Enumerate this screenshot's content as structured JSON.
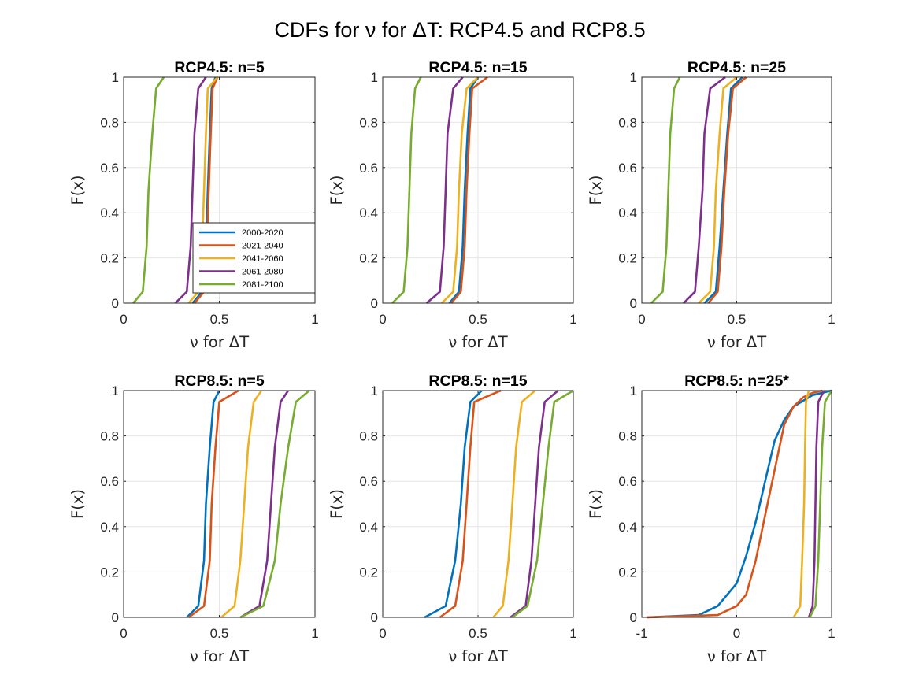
{
  "figure": {
    "title": "CDFs for ν for ΔT: RCP4.5 and RCP8.5",
    "legend_placement": "inside first panel, bottom-right"
  },
  "series_colors": {
    "2000-2020": "#0072BD",
    "2021-2040": "#D95319",
    "2041-2060": "#EDB120",
    "2061-2080": "#7E2F8E",
    "2081-2100": "#77AC30"
  },
  "chart_data": [
    {
      "type": "line",
      "title": "RCP4.5: n=5",
      "xlabel": "ν for ΔT",
      "ylabel": "F(x)",
      "xlim": [
        0,
        1
      ],
      "ylim": [
        0,
        1
      ],
      "xticks": [
        0,
        0.5,
        1
      ],
      "xtick_labels": [
        "0",
        "0.5",
        "1"
      ],
      "yticks": [
        0,
        0.2,
        0.4,
        0.6,
        0.8,
        1
      ],
      "ytick_labels": [
        "0",
        "0.2",
        "0.4",
        "0.6",
        "0.8",
        "1"
      ],
      "grid": true,
      "legend": true,
      "series": [
        {
          "name": "2000-2020",
          "x": [
            0.36,
            0.41,
            0.43,
            0.44,
            0.45,
            0.46,
            0.48
          ],
          "y": [
            0,
            0.05,
            0.25,
            0.5,
            0.75,
            0.95,
            1
          ]
        },
        {
          "name": "2021-2040",
          "x": [
            0.37,
            0.42,
            0.435,
            0.445,
            0.455,
            0.465,
            0.49
          ],
          "y": [
            0,
            0.05,
            0.25,
            0.5,
            0.75,
            0.95,
            1
          ]
        },
        {
          "name": "2041-2060",
          "x": [
            0.34,
            0.39,
            0.41,
            0.42,
            0.43,
            0.44,
            0.49
          ],
          "y": [
            0,
            0.05,
            0.25,
            0.5,
            0.75,
            0.95,
            1
          ]
        },
        {
          "name": "2061-2080",
          "x": [
            0.27,
            0.33,
            0.35,
            0.36,
            0.37,
            0.39,
            0.43
          ],
          "y": [
            0,
            0.05,
            0.25,
            0.5,
            0.75,
            0.95,
            1
          ]
        },
        {
          "name": "2081-2100",
          "x": [
            0.05,
            0.1,
            0.12,
            0.13,
            0.15,
            0.17,
            0.21
          ],
          "y": [
            0,
            0.05,
            0.25,
            0.5,
            0.75,
            0.95,
            1
          ]
        }
      ]
    },
    {
      "type": "line",
      "title": "RCP4.5: n=15",
      "xlabel": "ν for ΔT",
      "ylabel": "F(x)",
      "xlim": [
        0,
        1
      ],
      "ylim": [
        0,
        1
      ],
      "xticks": [
        0,
        0.5,
        1
      ],
      "xtick_labels": [
        "0",
        "0.5",
        "1"
      ],
      "yticks": [
        0,
        0.2,
        0.4,
        0.6,
        0.8,
        1
      ],
      "ytick_labels": [
        "0",
        "0.2",
        "0.4",
        "0.6",
        "0.8",
        "1"
      ],
      "grid": true,
      "legend": false,
      "series": [
        {
          "name": "2000-2020",
          "x": [
            0.35,
            0.4,
            0.42,
            0.43,
            0.445,
            0.46,
            0.5
          ],
          "y": [
            0,
            0.05,
            0.25,
            0.5,
            0.75,
            0.95,
            1
          ]
        },
        {
          "name": "2021-2040",
          "x": [
            0.36,
            0.41,
            0.43,
            0.44,
            0.455,
            0.47,
            0.55
          ],
          "y": [
            0,
            0.05,
            0.25,
            0.5,
            0.75,
            0.95,
            1
          ]
        },
        {
          "name": "2041-2060",
          "x": [
            0.31,
            0.37,
            0.39,
            0.4,
            0.415,
            0.44,
            0.5
          ],
          "y": [
            0,
            0.05,
            0.25,
            0.5,
            0.75,
            0.95,
            1
          ]
        },
        {
          "name": "2061-2080",
          "x": [
            0.23,
            0.3,
            0.32,
            0.33,
            0.34,
            0.37,
            0.42
          ],
          "y": [
            0,
            0.05,
            0.25,
            0.5,
            0.75,
            0.95,
            1
          ]
        },
        {
          "name": "2081-2100",
          "x": [
            0.05,
            0.11,
            0.13,
            0.14,
            0.15,
            0.17,
            0.2
          ],
          "y": [
            0,
            0.05,
            0.25,
            0.5,
            0.75,
            0.95,
            1
          ]
        }
      ]
    },
    {
      "type": "line",
      "title": "RCP4.5: n=25",
      "xlabel": "ν for ΔT",
      "ylabel": "F(x)",
      "xlim": [
        0,
        1
      ],
      "ylim": [
        0,
        1
      ],
      "xticks": [
        0,
        0.5,
        1
      ],
      "xtick_labels": [
        "0",
        "0.5",
        "1"
      ],
      "yticks": [
        0,
        0.2,
        0.4,
        0.6,
        0.8,
        1
      ],
      "ytick_labels": [
        "0",
        "0.2",
        "0.4",
        "0.6",
        "0.8",
        "1"
      ],
      "grid": true,
      "legend": false,
      "series": [
        {
          "name": "2000-2020",
          "x": [
            0.33,
            0.39,
            0.41,
            0.43,
            0.45,
            0.47,
            0.53
          ],
          "y": [
            0,
            0.05,
            0.25,
            0.5,
            0.75,
            0.95,
            1
          ]
        },
        {
          "name": "2021-2040",
          "x": [
            0.35,
            0.4,
            0.42,
            0.435,
            0.455,
            0.48,
            0.55
          ],
          "y": [
            0,
            0.05,
            0.25,
            0.5,
            0.75,
            0.95,
            1
          ]
        },
        {
          "name": "2041-2060",
          "x": [
            0.3,
            0.36,
            0.38,
            0.39,
            0.41,
            0.43,
            0.5
          ],
          "y": [
            0,
            0.05,
            0.25,
            0.5,
            0.75,
            0.95,
            1
          ]
        },
        {
          "name": "2061-2080",
          "x": [
            0.22,
            0.28,
            0.3,
            0.32,
            0.33,
            0.36,
            0.44
          ],
          "y": [
            0,
            0.05,
            0.25,
            0.5,
            0.75,
            0.95,
            1
          ]
        },
        {
          "name": "2081-2100",
          "x": [
            0.05,
            0.11,
            0.13,
            0.14,
            0.15,
            0.17,
            0.2
          ],
          "y": [
            0,
            0.05,
            0.25,
            0.5,
            0.75,
            0.95,
            1
          ]
        }
      ]
    },
    {
      "type": "line",
      "title": "RCP8.5: n=5",
      "xlabel": "ν for ΔT",
      "ylabel": "F(x)",
      "xlim": [
        0,
        1
      ],
      "ylim": [
        0,
        1
      ],
      "xticks": [
        0,
        0.5,
        1
      ],
      "xtick_labels": [
        "0",
        "0.5",
        "1"
      ],
      "yticks": [
        0,
        0.2,
        0.4,
        0.6,
        0.8,
        1
      ],
      "ytick_labels": [
        "0",
        "0.2",
        "0.4",
        "0.6",
        "0.8",
        "1"
      ],
      "grid": true,
      "legend": false,
      "series": [
        {
          "name": "2000-2020",
          "x": [
            0.33,
            0.39,
            0.42,
            0.43,
            0.45,
            0.47,
            0.5
          ],
          "y": [
            0,
            0.05,
            0.25,
            0.5,
            0.75,
            0.95,
            1
          ]
        },
        {
          "name": "2021-2040",
          "x": [
            0.34,
            0.42,
            0.45,
            0.46,
            0.48,
            0.5,
            0.6
          ],
          "y": [
            0,
            0.05,
            0.25,
            0.5,
            0.75,
            0.95,
            1
          ]
        },
        {
          "name": "2041-2060",
          "x": [
            0.51,
            0.58,
            0.61,
            0.63,
            0.65,
            0.68,
            0.72
          ],
          "y": [
            0,
            0.05,
            0.25,
            0.5,
            0.75,
            0.95,
            1
          ]
        },
        {
          "name": "2061-2080",
          "x": [
            0.61,
            0.71,
            0.75,
            0.77,
            0.79,
            0.82,
            0.86
          ],
          "y": [
            0,
            0.05,
            0.25,
            0.5,
            0.75,
            0.95,
            1
          ]
        },
        {
          "name": "2081-2100",
          "x": [
            0.61,
            0.73,
            0.79,
            0.82,
            0.86,
            0.9,
            0.97
          ],
          "y": [
            0,
            0.05,
            0.25,
            0.5,
            0.75,
            0.95,
            1
          ]
        }
      ]
    },
    {
      "type": "line",
      "title": "RCP8.5: n=15",
      "xlabel": "ν for ΔT",
      "ylabel": "F(x)",
      "xlim": [
        0,
        1
      ],
      "ylim": [
        0,
        1
      ],
      "xticks": [
        0,
        0.5,
        1
      ],
      "xtick_labels": [
        "0",
        "0.5",
        "1"
      ],
      "yticks": [
        0,
        0.2,
        0.4,
        0.6,
        0.8,
        1
      ],
      "ytick_labels": [
        "0",
        "0.2",
        "0.4",
        "0.6",
        "0.8",
        "1"
      ],
      "grid": true,
      "legend": false,
      "series": [
        {
          "name": "2000-2020",
          "x": [
            0.22,
            0.33,
            0.38,
            0.41,
            0.43,
            0.46,
            0.52
          ],
          "y": [
            0,
            0.05,
            0.25,
            0.5,
            0.75,
            0.95,
            1
          ]
        },
        {
          "name": "2021-2040",
          "x": [
            0.3,
            0.38,
            0.42,
            0.44,
            0.46,
            0.48,
            0.62
          ],
          "y": [
            0,
            0.05,
            0.25,
            0.5,
            0.75,
            0.95,
            1
          ]
        },
        {
          "name": "2041-2060",
          "x": [
            0.58,
            0.63,
            0.66,
            0.68,
            0.7,
            0.73,
            0.8
          ],
          "y": [
            0,
            0.05,
            0.25,
            0.5,
            0.75,
            0.95,
            1
          ]
        },
        {
          "name": "2061-2080",
          "x": [
            0.67,
            0.75,
            0.78,
            0.8,
            0.82,
            0.85,
            0.92
          ],
          "y": [
            0,
            0.05,
            0.25,
            0.5,
            0.75,
            0.95,
            1
          ]
        },
        {
          "name": "2081-2100",
          "x": [
            0.68,
            0.76,
            0.81,
            0.84,
            0.87,
            0.9,
            1.0
          ],
          "y": [
            0,
            0.05,
            0.25,
            0.5,
            0.75,
            0.95,
            1
          ]
        }
      ]
    },
    {
      "type": "line",
      "title": "RCP8.5: n=25*",
      "xlabel": "ν for ΔT",
      "ylabel": "F(x)",
      "xlim": [
        -1,
        1
      ],
      "ylim": [
        0,
        1
      ],
      "xticks": [
        -1,
        0,
        1
      ],
      "xtick_labels": [
        "-1",
        "0",
        "1"
      ],
      "yticks": [
        0,
        0.2,
        0.4,
        0.6,
        0.8,
        1
      ],
      "ytick_labels": [
        "0",
        "0.2",
        "0.4",
        "0.6",
        "0.8",
        "1"
      ],
      "grid": true,
      "legend": false,
      "series": [
        {
          "name": "2000-2020",
          "x": [
            -0.95,
            -0.4,
            -0.2,
            0.0,
            0.1,
            0.2,
            0.3,
            0.4,
            0.5,
            0.6,
            0.8,
            1.0
          ],
          "y": [
            0,
            0.01,
            0.05,
            0.15,
            0.27,
            0.42,
            0.6,
            0.78,
            0.87,
            0.93,
            0.98,
            1
          ]
        },
        {
          "name": "2021-2040",
          "x": [
            -0.95,
            -0.2,
            0.0,
            0.1,
            0.2,
            0.3,
            0.4,
            0.5,
            0.6,
            0.7,
            0.8,
            0.9
          ],
          "y": [
            0,
            0.01,
            0.05,
            0.1,
            0.25,
            0.45,
            0.65,
            0.85,
            0.93,
            0.97,
            0.99,
            1
          ]
        },
        {
          "name": "2041-2060",
          "x": [
            0.6,
            0.67,
            0.69,
            0.71,
            0.72,
            0.73,
            0.76
          ],
          "y": [
            0,
            0.05,
            0.25,
            0.5,
            0.75,
            0.95,
            1
          ]
        },
        {
          "name": "2061-2080",
          "x": [
            0.76,
            0.8,
            0.82,
            0.83,
            0.84,
            0.86,
            0.92
          ],
          "y": [
            0,
            0.05,
            0.25,
            0.5,
            0.75,
            0.95,
            1
          ]
        },
        {
          "name": "2081-2100",
          "x": [
            0.77,
            0.83,
            0.86,
            0.88,
            0.9,
            0.93,
            1.0
          ],
          "y": [
            0,
            0.05,
            0.25,
            0.5,
            0.75,
            0.95,
            1
          ]
        }
      ]
    }
  ]
}
